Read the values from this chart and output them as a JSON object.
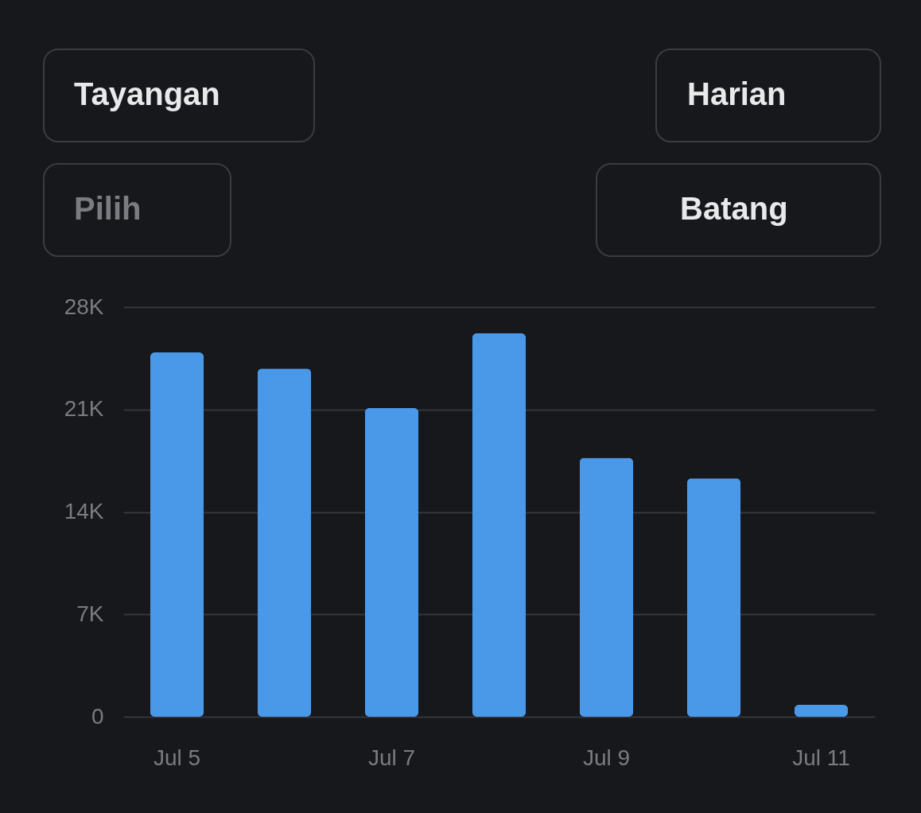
{
  "chart_data": {
    "type": "bar",
    "categories": [
      "Jul 5",
      null,
      "Jul 7",
      null,
      "Jul 9",
      null,
      "Jul 11"
    ],
    "values": [
      24900,
      23800,
      21100,
      26200,
      17700,
      16300,
      820
    ],
    "color": "#4a99e9",
    "ylim": [
      0,
      28000
    ],
    "yticks": [
      {
        "value": 0,
        "label": "0"
      },
      {
        "value": 7000,
        "label": "7K"
      },
      {
        "value": 14000,
        "label": "14K"
      },
      {
        "value": 21000,
        "label": "21K"
      },
      {
        "value": 28000,
        "label": "28K"
      }
    ],
    "grid": "y",
    "annotations": [
      "Tayangan",
      "Harian",
      "Pilih",
      "Batang"
    ]
  }
}
